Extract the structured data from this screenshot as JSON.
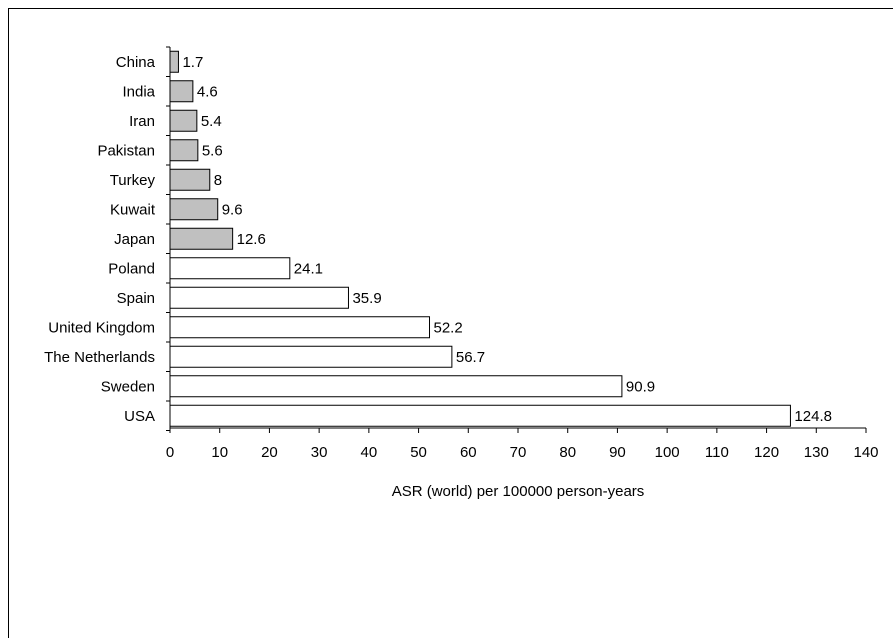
{
  "chart_data": {
    "type": "bar",
    "orientation": "horizontal",
    "categories": [
      "China",
      "India",
      "Iran",
      "Pakistan",
      "Turkey",
      "Kuwait",
      "Japan",
      "Poland",
      "Spain",
      "United Kingdom",
      "The Netherlands",
      "Sweden",
      "USA"
    ],
    "values": [
      1.7,
      4.6,
      5.4,
      5.6,
      8,
      9.6,
      12.6,
      24.1,
      35.9,
      52.2,
      56.7,
      90.9,
      124.8
    ],
    "value_labels": [
      "1.7",
      "4.6",
      "5.4",
      "5.6",
      "8",
      "9.6",
      "12.6",
      "24.1",
      "35.9",
      "52.2",
      "56.7",
      "90.9",
      "124.8"
    ],
    "bar_fills": [
      "#c0c0c0",
      "#c0c0c0",
      "#c0c0c0",
      "#c0c0c0",
      "#c0c0c0",
      "#c0c0c0",
      "#c0c0c0",
      "#ffffff",
      "#ffffff",
      "#ffffff",
      "#ffffff",
      "#ffffff",
      "#ffffff"
    ],
    "xlabel": "ASR (world) per 100000 person-years",
    "xlim": [
      0,
      140
    ],
    "xticks": [
      0,
      10,
      20,
      30,
      40,
      50,
      60,
      70,
      80,
      90,
      100,
      110,
      120,
      130,
      140
    ],
    "grid": false,
    "legend": "none"
  }
}
